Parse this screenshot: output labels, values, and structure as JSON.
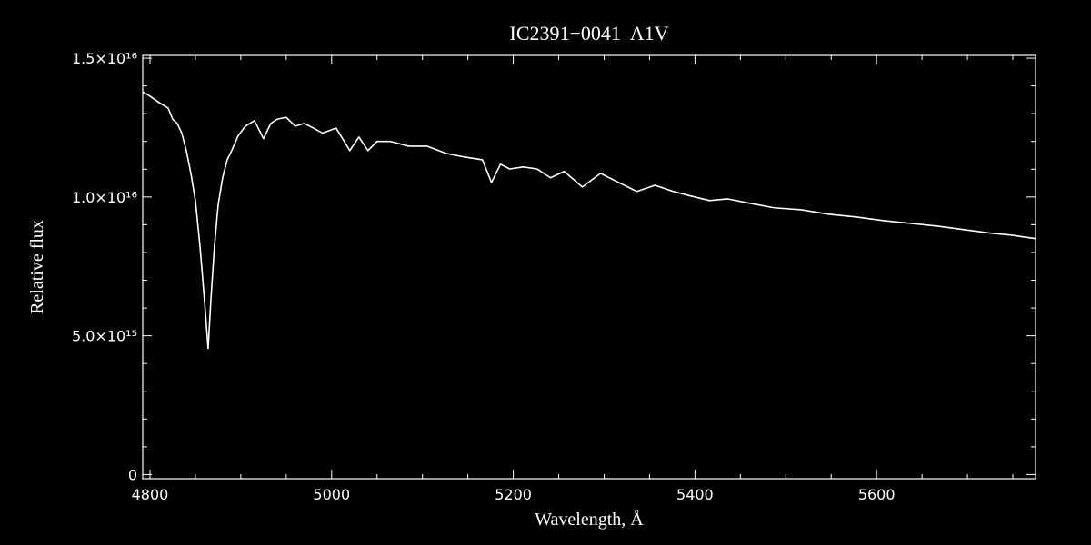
{
  "chart_data": {
    "type": "line",
    "title": "IC2391−0041  A1V",
    "x_label": "Wavelength, Å",
    "y_label": "Relative flux",
    "xlim": [
      4792,
      5775
    ],
    "ylim": [
      -150000000000000.0,
      1.51e+16
    ],
    "xticks": [
      4800,
      5000,
      5200,
      5400,
      5600
    ],
    "xminorticks": [
      4850,
      4900,
      4950,
      5050,
      5100,
      5150,
      5250,
      5300,
      5350,
      5450,
      5500,
      5550,
      5650,
      5700,
      5750
    ],
    "yticks": [
      0,
      {
        "value": 5000000000000000.0,
        "label": "5.0×10¹⁵"
      },
      {
        "value": 1e+16,
        "label": "1.0×10¹⁶"
      },
      {
        "value": 1.5e+16,
        "label": "1.5×10¹⁶"
      }
    ],
    "yminorticks": [
      1000000000000000.0,
      2000000000000000.0,
      3000000000000000.0,
      4000000000000000.0,
      6000000000000000.0,
      7000000000000000.0,
      8000000000000000.0,
      9000000000000000.0,
      1.1e+16,
      1.2e+16,
      1.3e+16,
      1.4e+16
    ],
    "color": "#ffffff",
    "x": [
      4792,
      4800,
      4810,
      4820,
      4825,
      4830,
      4835,
      4840,
      4845,
      4850,
      4855,
      4860,
      4864,
      4867,
      4871,
      4875,
      4880,
      4885,
      4890,
      4897,
      4905,
      4915,
      4925,
      4933,
      4940,
      4950,
      4960,
      4970,
      4980,
      4990,
      5005,
      5020,
      5030,
      5040,
      5050,
      5065,
      5085,
      5105,
      5126,
      5146,
      5166,
      5176,
      5186,
      5196,
      5211,
      5226,
      5241,
      5256,
      5276,
      5296,
      5316,
      5336,
      5356,
      5376,
      5396,
      5416,
      5436,
      5456,
      5487,
      5517,
      5547,
      5577,
      5607,
      5637,
      5667,
      5697,
      5727,
      5747,
      5775
    ],
    "values": [
      1.379e+16,
      1.363e+16,
      1.34e+16,
      1.32e+16,
      1.28e+16,
      1.265e+16,
      1.23e+16,
      1.167e+16,
      1.085e+16,
      9870000000000000.0,
      8240000000000000.0,
      6270000000000000.0,
      4540000000000000.0,
      6270000000000000.0,
      8240000000000000.0,
      9700000000000000.0,
      1.07e+16,
      1.134e+16,
      1.167e+16,
      1.22e+16,
      1.255e+16,
      1.275e+16,
      1.21e+16,
      1.265e+16,
      1.28e+16,
      1.287e+16,
      1.255e+16,
      1.265e+16,
      1.248e+16,
      1.23e+16,
      1.248e+16,
      1.167e+16,
      1.216e+16,
      1.167e+16,
      1.2e+16,
      1.2e+16,
      1.183e+16,
      1.183e+16,
      1.157e+16,
      1.144e+16,
      1.134e+16,
      1.052e+16,
      1.118e+16,
      1.101e+16,
      1.108e+16,
      1.101e+16,
      1.069e+16,
      1.092e+16,
      1.036e+16,
      1.085e+16,
      1.052e+16,
      1.02e+16,
      1.042e+16,
      1.02e+16,
      1.003e+16,
      9870000000000000.0,
      9930000000000000.0,
      9800000000000000.0,
      9610000000000000.0,
      9540000000000000.0,
      9380000000000000.0,
      9280000000000000.0,
      9150000000000000.0,
      9050000000000000.0,
      8950000000000000.0,
      8820000000000000.0,
      8690000000000000.0,
      8630000000000000.0,
      8500000000000000.0
    ]
  }
}
